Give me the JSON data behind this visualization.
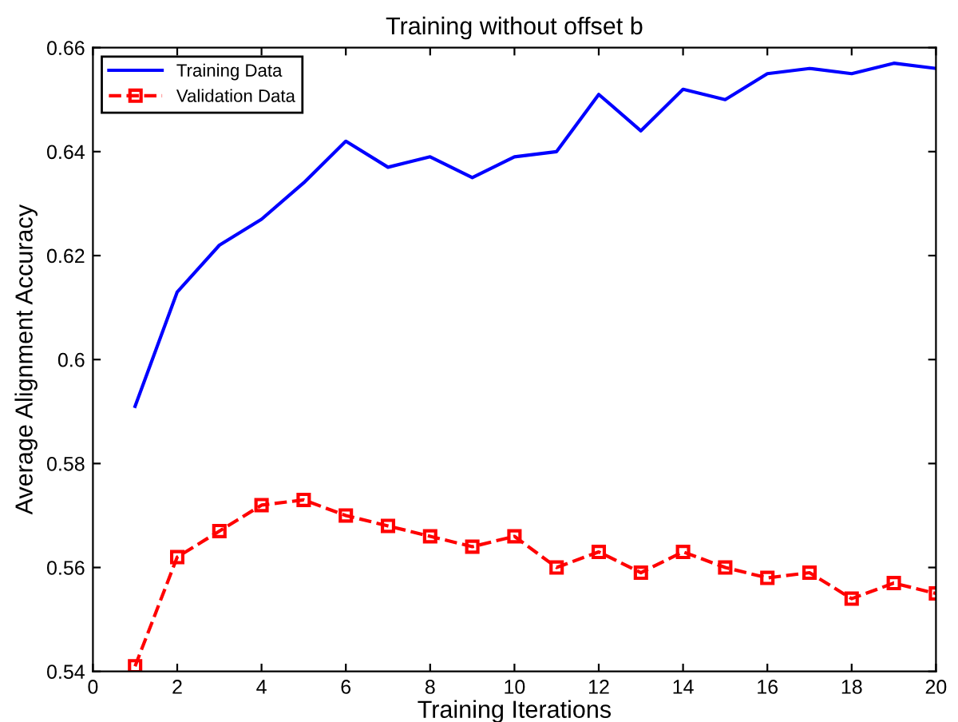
{
  "chart_data": {
    "type": "line",
    "title": "Training without offset b",
    "xlabel": "Training Iterations",
    "ylabel": "Average Alignment Accuracy",
    "x": [
      1,
      2,
      3,
      4,
      5,
      6,
      7,
      8,
      9,
      10,
      11,
      12,
      13,
      14,
      15,
      16,
      17,
      18,
      19,
      20
    ],
    "series": [
      {
        "name": "Training Data",
        "color": "#0000ff",
        "line_style": "solid",
        "marker": "none",
        "values": [
          0.591,
          0.613,
          0.622,
          0.627,
          0.634,
          0.642,
          0.637,
          0.639,
          0.635,
          0.639,
          0.64,
          0.651,
          0.644,
          0.652,
          0.65,
          0.655,
          0.656,
          0.655,
          0.657,
          0.656
        ]
      },
      {
        "name": "Validation Data",
        "color": "#ff0000",
        "line_style": "dashed",
        "marker": "square",
        "values": [
          0.541,
          0.562,
          0.567,
          0.572,
          0.573,
          0.57,
          0.568,
          0.566,
          0.564,
          0.566,
          0.56,
          0.563,
          0.559,
          0.563,
          0.56,
          0.558,
          0.559,
          0.554,
          0.557,
          0.555
        ]
      }
    ],
    "xlim": [
      0,
      20
    ],
    "xticks": [
      0,
      2,
      4,
      6,
      8,
      10,
      12,
      14,
      16,
      18,
      20
    ],
    "ylim": [
      0.54,
      0.66
    ],
    "yticks": [
      0.54,
      0.56,
      0.58,
      0.6,
      0.62,
      0.64,
      0.66
    ],
    "grid": false,
    "legend": "top left"
  }
}
